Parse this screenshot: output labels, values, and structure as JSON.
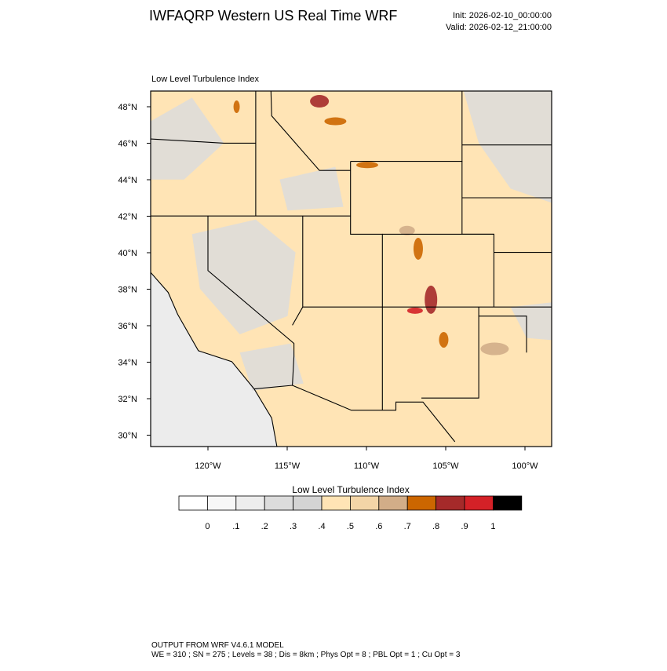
{
  "header": {
    "title": "IWFAQRP Western US Real Time WRF",
    "init": "Init: 2026-02-10_00:00:00",
    "valid": "Valid: 2026-02-12_21:00:00"
  },
  "map": {
    "label": "Low Level Turbulence Index",
    "lat_ticks": [
      "48°N",
      "46°N",
      "44°N",
      "42°N",
      "40°N",
      "38°N",
      "36°N",
      "34°N",
      "32°N",
      "30°N"
    ],
    "lon_ticks": [
      "120°W",
      "115°W",
      "110°W",
      "105°W",
      "100°W"
    ]
  },
  "colorbar": {
    "title": "Low Level Turbulence Index",
    "labels": [
      "0",
      ".1",
      ".2",
      ".3",
      ".4",
      ".5",
      ".6",
      ".7",
      ".8",
      ".9",
      "1"
    ],
    "colors": [
      "#ffffff",
      "#f7f7f7",
      "#ededed",
      "#dcdcdc",
      "#d4d4d4",
      "#ffe4b5",
      "#f3d5a7",
      "#d2ad88",
      "#cc6600",
      "#a52a2a",
      "#d42127",
      "#000000"
    ]
  },
  "footer": {
    "line1": "OUTPUT FROM WRF V4.6.1 MODEL",
    "line2": "WE = 310 ; SN = 275 ; Levels = 38 ; Dis = 8km ; Phys Opt = 8 ; PBL Opt = 1 ; Cu Opt = 3"
  }
}
